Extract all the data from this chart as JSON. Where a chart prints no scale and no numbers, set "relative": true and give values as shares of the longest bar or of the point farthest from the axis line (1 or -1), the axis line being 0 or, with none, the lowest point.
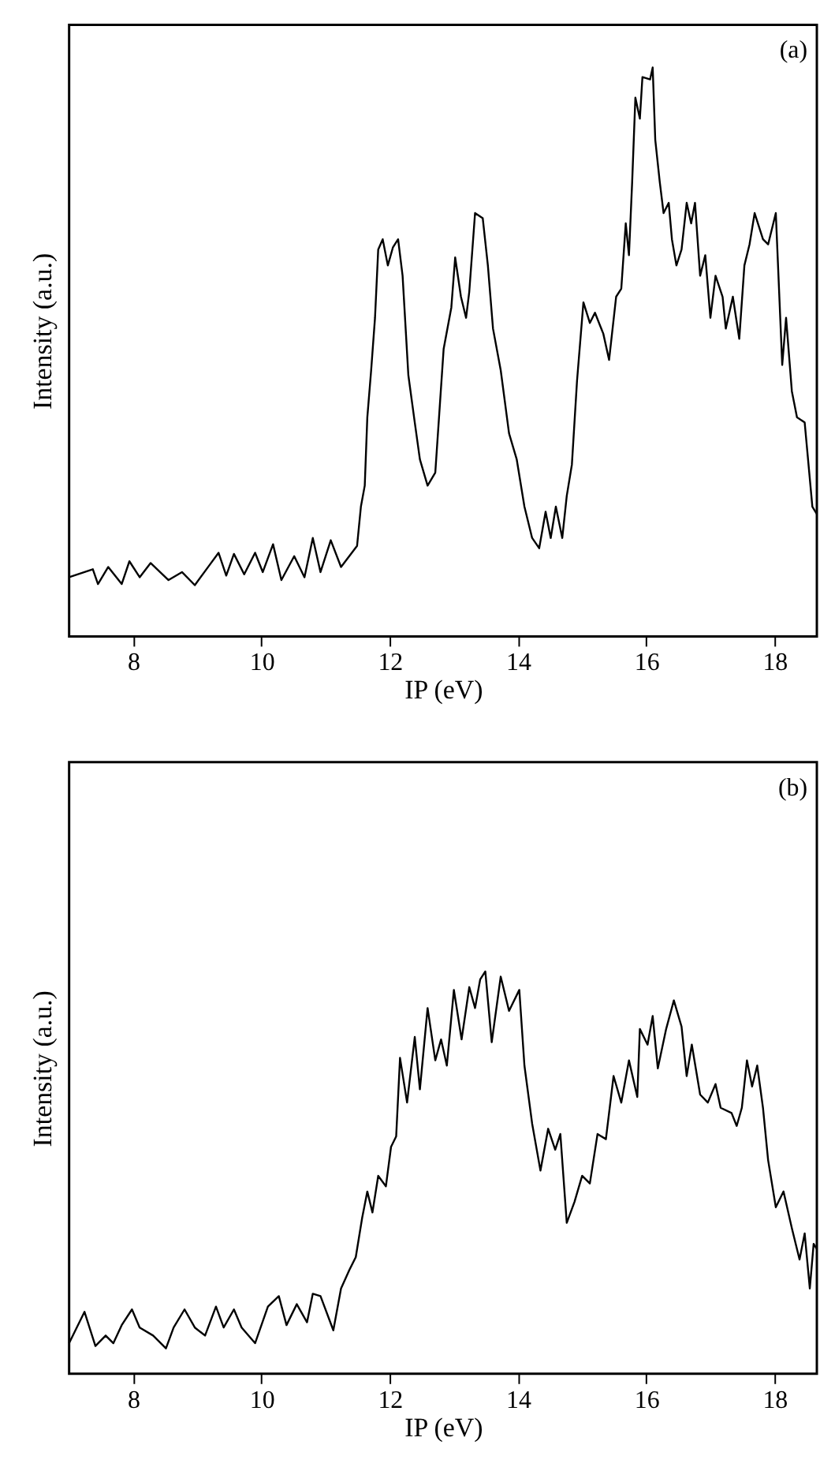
{
  "chart_data": [
    {
      "type": "line",
      "relative": true,
      "xlabel": "IP (eV)",
      "ylabel": "Intensity (a.u.)",
      "annotations": [
        "(a)"
      ],
      "xlim": [
        7,
        18.66
      ],
      "xticks": [
        8,
        10,
        12,
        14,
        16,
        18
      ],
      "tick_labels": "x",
      "grid": false,
      "line_style": "solid",
      "series": [
        {
          "color": "#000000",
          "x": [
            7.0,
            7.37,
            7.45,
            7.61,
            7.82,
            7.94,
            8.1,
            8.27,
            8.55,
            8.76,
            8.96,
            9.2,
            9.33,
            9.45,
            9.57,
            9.73,
            9.9,
            10.02,
            10.18,
            10.31,
            10.51,
            10.67,
            10.8,
            10.92,
            11.08,
            11.24,
            11.49,
            11.55,
            11.61,
            11.65,
            11.71,
            11.77,
            11.82,
            11.89,
            11.97,
            12.05,
            12.13,
            12.2,
            12.29,
            12.39,
            12.47,
            12.59,
            12.71,
            12.84,
            12.96,
            13.02,
            13.11,
            13.19,
            13.24,
            13.33,
            13.45,
            13.53,
            13.61,
            13.73,
            13.86,
            13.98,
            14.1,
            14.22,
            14.33,
            14.43,
            14.51,
            14.59,
            14.69,
            14.76,
            14.84,
            14.92,
            15.02,
            15.12,
            15.2,
            15.33,
            15.42,
            15.53,
            15.61,
            15.68,
            15.73,
            15.78,
            15.83,
            15.9,
            15.94,
            16.06,
            16.1,
            16.14,
            16.21,
            16.27,
            16.35,
            16.4,
            16.47,
            16.55,
            16.63,
            16.7,
            16.76,
            16.84,
            16.92,
            17.0,
            17.08,
            17.19,
            17.24,
            17.35,
            17.45,
            17.53,
            17.61,
            17.69,
            17.82,
            17.9,
            18.02,
            18.12,
            18.18,
            18.27,
            18.35,
            18.47,
            18.59,
            18.66
          ],
          "values": [
            0.104,
            0.118,
            0.092,
            0.122,
            0.092,
            0.132,
            0.104,
            0.129,
            0.099,
            0.113,
            0.09,
            0.127,
            0.147,
            0.107,
            0.145,
            0.109,
            0.147,
            0.113,
            0.162,
            0.099,
            0.141,
            0.104,
            0.173,
            0.113,
            0.169,
            0.122,
            0.159,
            0.228,
            0.265,
            0.385,
            0.468,
            0.56,
            0.68,
            0.698,
            0.652,
            0.684,
            0.698,
            0.634,
            0.459,
            0.376,
            0.311,
            0.265,
            0.288,
            0.505,
            0.578,
            0.666,
            0.597,
            0.56,
            0.606,
            0.744,
            0.735,
            0.652,
            0.541,
            0.468,
            0.357,
            0.311,
            0.228,
            0.173,
            0.155,
            0.219,
            0.173,
            0.228,
            0.173,
            0.247,
            0.302,
            0.449,
            0.587,
            0.551,
            0.569,
            0.532,
            0.486,
            0.597,
            0.611,
            0.726,
            0.67,
            0.799,
            0.947,
            0.91,
            0.983,
            0.979,
            1,
            0.873,
            0.799,
            0.744,
            0.762,
            0.698,
            0.652,
            0.68,
            0.762,
            0.726,
            0.762,
            0.634,
            0.67,
            0.56,
            0.634,
            0.597,
            0.541,
            0.597,
            0.523,
            0.652,
            0.689,
            0.744,
            0.698,
            0.689,
            0.744,
            0.477,
            0.56,
            0.431,
            0.385,
            0.376,
            0.228,
            0.215
          ]
        }
      ]
    },
    {
      "type": "line",
      "relative": true,
      "xlabel": "IP (eV)",
      "ylabel": "Intensity (a.u.)",
      "annotations": [
        "(b)"
      ],
      "xlim": [
        7,
        18.66
      ],
      "xticks": [
        8,
        10,
        12,
        14,
        16,
        18
      ],
      "tick_labels": "x",
      "grid": false,
      "line_style": "solid",
      "series": [
        {
          "color": "#000000",
          "x": [
            7.0,
            7.24,
            7.41,
            7.57,
            7.69,
            7.82,
            7.98,
            8.1,
            8.31,
            8.51,
            8.63,
            8.8,
            8.96,
            9.12,
            9.29,
            9.41,
            9.57,
            9.69,
            9.9,
            10.1,
            10.27,
            10.39,
            10.55,
            10.71,
            10.8,
            10.92,
            11.12,
            11.24,
            11.37,
            11.47,
            11.57,
            11.65,
            11.73,
            11.82,
            11.94,
            12.02,
            12.1,
            12.16,
            12.27,
            12.39,
            12.47,
            12.59,
            12.71,
            12.8,
            12.89,
            13.0,
            13.12,
            13.24,
            13.33,
            13.41,
            13.49,
            13.59,
            13.73,
            13.86,
            14.02,
            14.1,
            14.22,
            14.35,
            14.47,
            14.58,
            14.66,
            14.76,
            14.88,
            15.0,
            15.12,
            15.24,
            15.37,
            15.49,
            15.61,
            15.73,
            15.86,
            15.9,
            16.02,
            16.1,
            16.18,
            16.31,
            16.43,
            16.55,
            16.63,
            16.71,
            16.84,
            16.96,
            17.08,
            17.16,
            17.33,
            17.41,
            17.49,
            17.57,
            17.65,
            17.73,
            17.82,
            17.9,
            18.02,
            18.14,
            18.27,
            18.39,
            18.47,
            18.55,
            18.61,
            18.66
          ],
          "values": [
            0.076,
            0.154,
            0.069,
            0.095,
            0.076,
            0.121,
            0.16,
            0.115,
            0.095,
            0.063,
            0.115,
            0.16,
            0.115,
            0.095,
            0.167,
            0.115,
            0.16,
            0.115,
            0.076,
            0.167,
            0.193,
            0.121,
            0.173,
            0.128,
            0.199,
            0.193,
            0.108,
            0.212,
            0.258,
            0.29,
            0.388,
            0.453,
            0.401,
            0.492,
            0.466,
            0.564,
            0.59,
            0.785,
            0.674,
            0.837,
            0.707,
            0.909,
            0.779,
            0.831,
            0.766,
            0.954,
            0.831,
            0.961,
            0.909,
            0.98,
            1,
            0.824,
            0.987,
            0.902,
            0.954,
            0.766,
            0.622,
            0.505,
            0.609,
            0.557,
            0.596,
            0.375,
            0.427,
            0.492,
            0.473,
            0.596,
            0.583,
            0.74,
            0.674,
            0.779,
            0.688,
            0.857,
            0.818,
            0.889,
            0.759,
            0.857,
            0.928,
            0.863,
            0.74,
            0.818,
            0.694,
            0.674,
            0.72,
            0.661,
            0.648,
            0.616,
            0.661,
            0.779,
            0.714,
            0.766,
            0.661,
            0.531,
            0.414,
            0.453,
            0.362,
            0.284,
            0.349,
            0.212,
            0.323,
            0.31
          ]
        }
      ]
    }
  ]
}
